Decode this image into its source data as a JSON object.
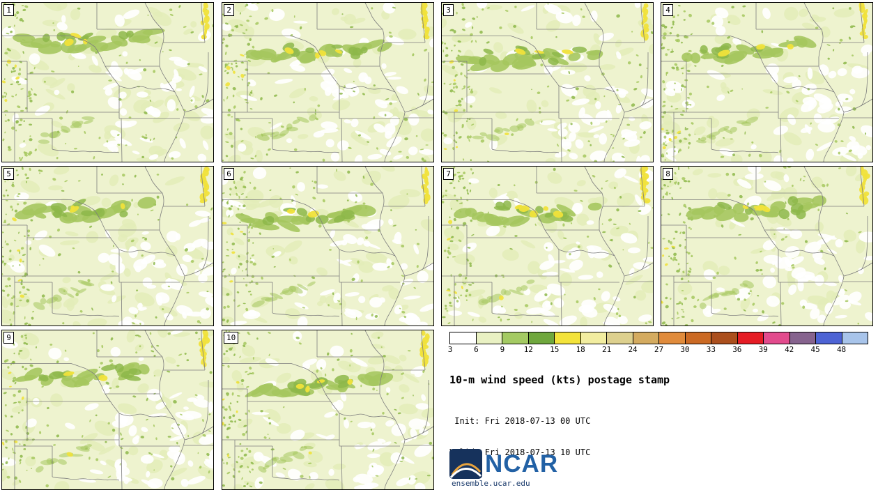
{
  "panels": {
    "labels": [
      "1",
      "2",
      "3",
      "4",
      "5",
      "6",
      "7",
      "8",
      "9",
      "10"
    ]
  },
  "legend": {
    "title": "10-m wind speed (kts) postage stamp",
    "init_line": " Init: Fri 2018-07-13 00 UTC",
    "valid_line": "Valid: Fri 2018-07-13 10 UTC",
    "ticks": [
      "3",
      "6",
      "9",
      "12",
      "15",
      "18",
      "21",
      "24",
      "27",
      "30",
      "33",
      "36",
      "39",
      "42",
      "45",
      "48"
    ],
    "colors": [
      "#ffffff",
      "#e9f1c3",
      "#a4ca63",
      "#6fa73d",
      "#f3e33b",
      "#f2eda0",
      "#ddd08e",
      "#d4ab60",
      "#e08b3c",
      "#cb6a24",
      "#ab4f1d",
      "#e51c25",
      "#e24b8d",
      "#86638e",
      "#4d63d4",
      "#a8c4ea"
    ]
  },
  "footer": {
    "logo_text": "NCAR",
    "site": "ensemble.ucar.edu"
  },
  "map_palette": {
    "base": "#eef3cf",
    "mottle": "#e3ecb8",
    "white_patch": "#ffffff",
    "green": "#a5c75e",
    "green_dark": "#8db74a",
    "yellow": "#f0e23a",
    "state_border": "#7d7d7d"
  }
}
